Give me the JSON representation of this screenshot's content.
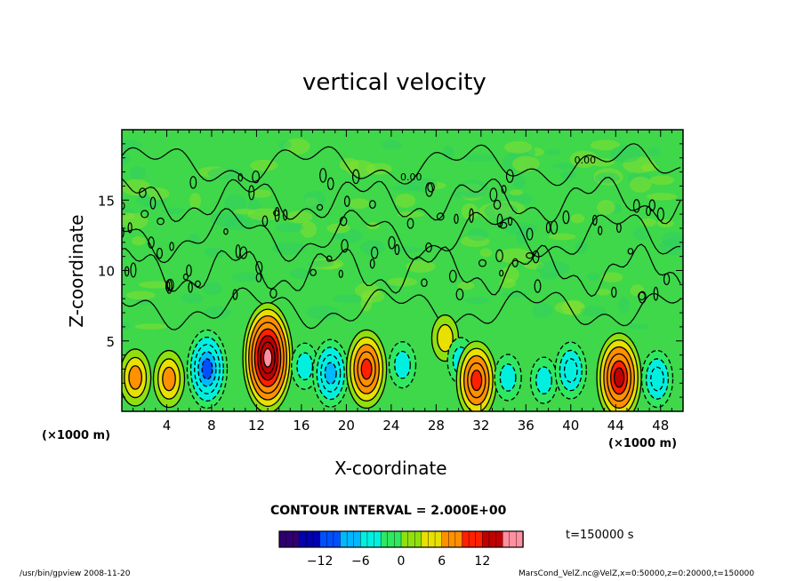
{
  "chart_data": {
    "type": "heatmap",
    "title": "vertical velocity",
    "xlabel": "X-coordinate",
    "ylabel": "Z-coordinate",
    "x_unit_left": "(×1000 m)",
    "x_unit_right": "(×1000 m)",
    "xlim": [
      0,
      50
    ],
    "ylim": [
      0,
      20
    ],
    "x_ticks": [
      4,
      8,
      12,
      16,
      20,
      24,
      28,
      32,
      36,
      40,
      44,
      48
    ],
    "y_ticks": [
      5,
      10,
      15
    ],
    "contour_interval_label": "CONTOUR INTERVAL = 2.000E+00",
    "contour_labels": [
      "0.00",
      "0.00"
    ],
    "time_label": "t=150000 s",
    "colorbar": {
      "min": -18,
      "max": 18,
      "ticks": [
        -12,
        -6,
        0,
        6,
        12
      ],
      "colors": [
        "#300070",
        "#0000b0",
        "#0050ff",
        "#00b8ff",
        "#00f0e0",
        "#30e860",
        "#90e010",
        "#e8e000",
        "#ff9000",
        "#ff2000",
        "#c00000",
        "#ff90a0"
      ]
    },
    "features": [
      {
        "x": 1.2,
        "z": 2.4,
        "w": 6.0,
        "type": "updraft"
      },
      {
        "x": 4.2,
        "z": 2.3,
        "w": 6.0,
        "type": "updraft"
      },
      {
        "x": 7.6,
        "z": 3.0,
        "w": -10.0,
        "type": "downdraft"
      },
      {
        "x": 13.0,
        "z": 3.8,
        "w": 16.0,
        "type": "updraft"
      },
      {
        "x": 16.3,
        "z": 3.2,
        "w": -4.0,
        "type": "downdraft"
      },
      {
        "x": 18.6,
        "z": 2.7,
        "w": -8.0,
        "type": "downdraft"
      },
      {
        "x": 21.8,
        "z": 3.0,
        "w": 10.0,
        "type": "updraft"
      },
      {
        "x": 25.0,
        "z": 3.3,
        "w": -3.0,
        "type": "downdraft"
      },
      {
        "x": 28.8,
        "z": 5.2,
        "w": 4.0,
        "type": "updraft"
      },
      {
        "x": 30.2,
        "z": 3.6,
        "w": -4.0,
        "type": "downdraft"
      },
      {
        "x": 31.6,
        "z": 2.2,
        "w": 10.0,
        "type": "updraft"
      },
      {
        "x": 34.4,
        "z": 2.4,
        "w": -4.0,
        "type": "downdraft"
      },
      {
        "x": 37.6,
        "z": 2.2,
        "w": -3.0,
        "type": "downdraft"
      },
      {
        "x": 40.0,
        "z": 2.9,
        "w": -6.0,
        "type": "downdraft"
      },
      {
        "x": 44.3,
        "z": 2.4,
        "w": 12.0,
        "type": "updraft"
      },
      {
        "x": 47.7,
        "z": 2.3,
        "w": -6.0,
        "type": "downdraft"
      }
    ]
  },
  "footer": {
    "left": "/usr/bin/gpview   2008-11-20",
    "right": "MarsCond_VelZ.nc@VelZ,x=0:50000,z=0:20000,t=150000"
  }
}
